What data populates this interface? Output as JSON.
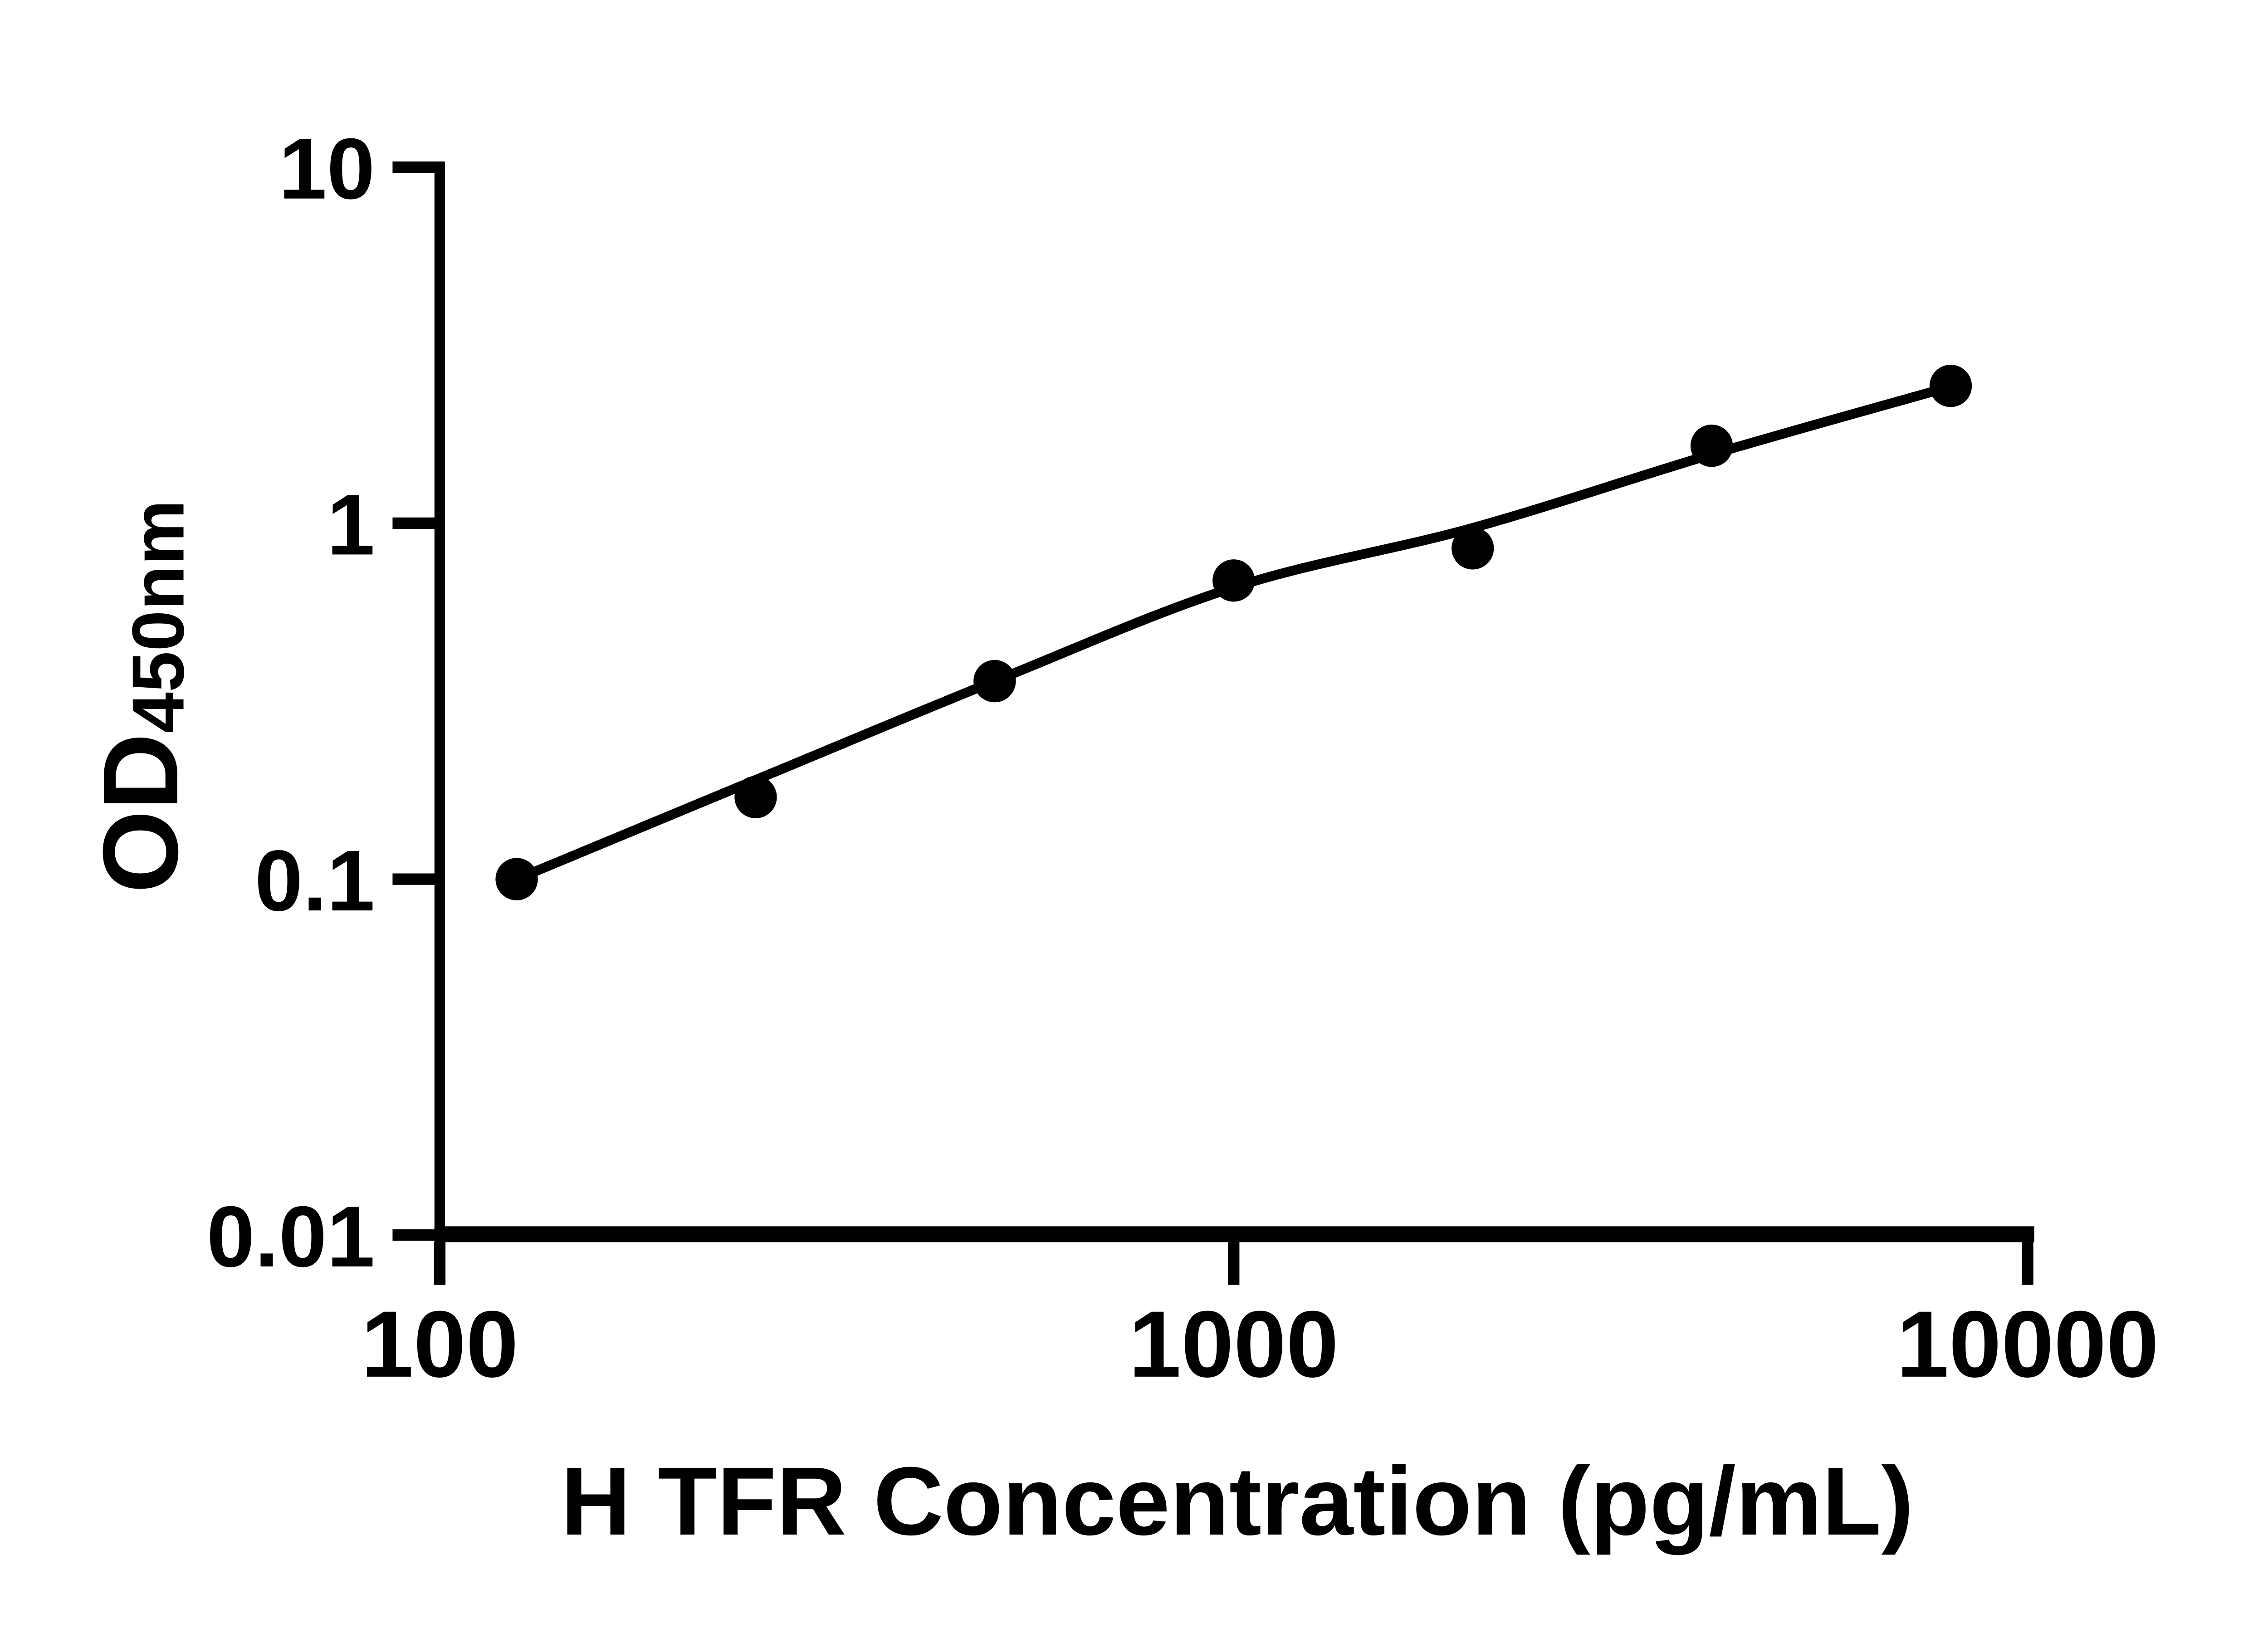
{
  "page": {
    "background": "#ffffff",
    "foreground": "#000000"
  },
  "chart_data": {
    "type": "scatter",
    "title": "",
    "xlabel": "H TFR Concentration (pg/mL)",
    "ylabel_main": "OD",
    "ylabel_subscript": "450nm",
    "x_axis": {
      "scale": "log",
      "min": 100,
      "max": 10000,
      "ticks": [
        100,
        1000,
        10000
      ],
      "tick_labels": [
        "100",
        "1000",
        "10000"
      ]
    },
    "y_axis": {
      "scale": "log",
      "min": 0.01,
      "max": 10,
      "ticks": [
        10,
        1,
        0.1,
        0.01
      ],
      "tick_labels": [
        "10",
        "1",
        "0.1",
        "0.01"
      ]
    },
    "grid": false,
    "legend": null,
    "marker_color": "#000000",
    "line_color": "#000000",
    "series": [
      {
        "name": "standard-points",
        "kind": "scatter",
        "points": [
          {
            "x": 125,
            "y": 0.1
          },
          {
            "x": 250,
            "y": 0.17
          },
          {
            "x": 500,
            "y": 0.36
          },
          {
            "x": 1000,
            "y": 0.69
          },
          {
            "x": 2000,
            "y": 0.85
          },
          {
            "x": 4000,
            "y": 1.65
          },
          {
            "x": 8000,
            "y": 2.43
          }
        ]
      },
      {
        "name": "fitted-curve",
        "kind": "line",
        "points": [
          {
            "x": 125,
            "y": 0.1
          },
          {
            "x": 250,
            "y": 0.19
          },
          {
            "x": 500,
            "y": 0.36
          },
          {
            "x": 1000,
            "y": 0.66
          },
          {
            "x": 2000,
            "y": 0.97
          },
          {
            "x": 4000,
            "y": 1.56
          },
          {
            "x": 8000,
            "y": 2.42
          }
        ]
      }
    ]
  }
}
